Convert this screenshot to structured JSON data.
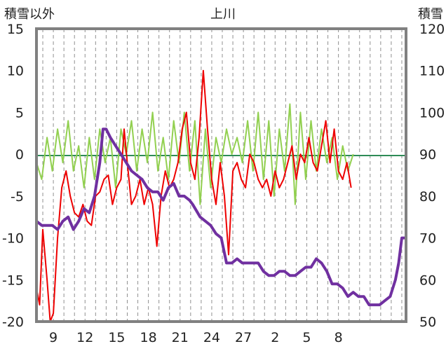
{
  "chart_data": {
    "type": "line",
    "title": "上川",
    "left_axis_label": "積雪以外",
    "right_axis_label": "積雪",
    "y_left": {
      "min": -20,
      "max": 15,
      "ticks": [
        15,
        10,
        5,
        0,
        -5,
        -10,
        -15,
        -20
      ]
    },
    "y_right": {
      "min": 50,
      "max": 120,
      "ticks": [
        120,
        110,
        100,
        90,
        80,
        70,
        60,
        50
      ]
    },
    "x": {
      "min": 0,
      "max": 35,
      "ticks": [
        {
          "pos": 1.6,
          "label": "9"
        },
        {
          "pos": 4.6,
          "label": "12"
        },
        {
          "pos": 7.6,
          "label": "15"
        },
        {
          "pos": 10.6,
          "label": "18"
        },
        {
          "pos": 13.6,
          "label": "21"
        },
        {
          "pos": 16.6,
          "label": "24"
        },
        {
          "pos": 19.6,
          "label": "27"
        },
        {
          "pos": 22.6,
          "label": "2"
        },
        {
          "pos": 25.6,
          "label": "5"
        },
        {
          "pos": 28.6,
          "label": "8"
        }
      ]
    },
    "colors": {
      "temperature": "#ee0000",
      "snow_depth": "#7030a0",
      "wind": "#92d050",
      "precip": "#ffc000",
      "sunshine": "#2e75b6",
      "frame": "#808080"
    },
    "series": [
      {
        "key": "temperature",
        "axis": "left",
        "points": [
          [
            0,
            -16
          ],
          [
            0.3,
            -18
          ],
          [
            0.6,
            -9
          ],
          [
            1,
            -15
          ],
          [
            1.3,
            -20
          ],
          [
            1.6,
            -19
          ],
          [
            2,
            -10
          ],
          [
            2.4,
            -4
          ],
          [
            2.8,
            -2
          ],
          [
            3.2,
            -5
          ],
          [
            3.6,
            -7
          ],
          [
            4,
            -7.5
          ],
          [
            4.4,
            -6
          ],
          [
            4.8,
            -8
          ],
          [
            5.2,
            -8.5
          ],
          [
            5.6,
            -5
          ],
          [
            6,
            -4.5
          ],
          [
            6.4,
            -3
          ],
          [
            6.8,
            -2.5
          ],
          [
            7.2,
            -6
          ],
          [
            7.6,
            -4
          ],
          [
            8,
            -3
          ],
          [
            8.3,
            3
          ],
          [
            8.6,
            -1
          ],
          [
            9,
            -6
          ],
          [
            9.4,
            -5
          ],
          [
            9.8,
            -3
          ],
          [
            10.2,
            -6
          ],
          [
            10.6,
            -4
          ],
          [
            11,
            -6
          ],
          [
            11.4,
            -11
          ],
          [
            11.8,
            -5
          ],
          [
            12.2,
            -2
          ],
          [
            12.6,
            -4
          ],
          [
            13,
            -3
          ],
          [
            13.4,
            -1
          ],
          [
            13.8,
            3
          ],
          [
            14.2,
            5
          ],
          [
            14.6,
            -1
          ],
          [
            15,
            -3
          ],
          [
            15.4,
            2
          ],
          [
            15.8,
            10
          ],
          [
            16.2,
            3
          ],
          [
            16.6,
            -3
          ],
          [
            17,
            -6
          ],
          [
            17.4,
            -1
          ],
          [
            17.8,
            -5
          ],
          [
            18.2,
            -12
          ],
          [
            18.6,
            -2
          ],
          [
            19,
            -1
          ],
          [
            19.4,
            -3
          ],
          [
            19.8,
            -4
          ],
          [
            20.2,
            0
          ],
          [
            20.6,
            -1
          ],
          [
            21,
            -3
          ],
          [
            21.4,
            -4
          ],
          [
            21.8,
            -3
          ],
          [
            22.2,
            -5
          ],
          [
            22.6,
            -2
          ],
          [
            23,
            -4
          ],
          [
            23.4,
            -3
          ],
          [
            23.8,
            -1
          ],
          [
            24.2,
            1
          ],
          [
            24.6,
            -3
          ],
          [
            25,
            0
          ],
          [
            25.4,
            -1
          ],
          [
            25.8,
            2
          ],
          [
            26.2,
            -1
          ],
          [
            26.6,
            -2
          ],
          [
            27,
            1
          ],
          [
            27.4,
            4
          ],
          [
            27.8,
            -1
          ],
          [
            28.2,
            3
          ],
          [
            28.6,
            -2
          ],
          [
            29,
            -3
          ],
          [
            29.4,
            -1
          ],
          [
            29.8,
            -4
          ]
        ]
      },
      {
        "key": "wind",
        "axis": "left",
        "points": [
          [
            0,
            -1
          ],
          [
            0.5,
            -3
          ],
          [
            1,
            2
          ],
          [
            1.5,
            -2
          ],
          [
            2,
            3
          ],
          [
            2.5,
            -1
          ],
          [
            3,
            4
          ],
          [
            3.5,
            -2
          ],
          [
            4,
            1
          ],
          [
            4.5,
            -4
          ],
          [
            5,
            2
          ],
          [
            5.5,
            -3
          ],
          [
            6,
            3
          ],
          [
            6.5,
            -1
          ],
          [
            7,
            2
          ],
          [
            7.5,
            -4
          ],
          [
            8,
            3
          ],
          [
            8.5,
            0
          ],
          [
            9,
            4
          ],
          [
            9.5,
            -2
          ],
          [
            10,
            3
          ],
          [
            10.5,
            -1
          ],
          [
            11,
            5
          ],
          [
            11.5,
            -2
          ],
          [
            12,
            2
          ],
          [
            12.5,
            -3
          ],
          [
            13,
            4
          ],
          [
            13.5,
            -1
          ],
          [
            14,
            5
          ],
          [
            14.5,
            -2
          ],
          [
            15,
            4
          ],
          [
            15.5,
            -6
          ],
          [
            16,
            3
          ],
          [
            16.5,
            -4
          ],
          [
            17,
            2
          ],
          [
            17.5,
            -1
          ],
          [
            18,
            3
          ],
          [
            18.5,
            0
          ],
          [
            19,
            2
          ],
          [
            19.5,
            -1
          ],
          [
            20,
            4
          ],
          [
            20.5,
            -2
          ],
          [
            21,
            5
          ],
          [
            21.5,
            -3
          ],
          [
            22,
            4
          ],
          [
            22.5,
            -5
          ],
          [
            23,
            3
          ],
          [
            23.5,
            -2
          ],
          [
            24,
            6
          ],
          [
            24.5,
            -6
          ],
          [
            25,
            5
          ],
          [
            25.5,
            -3
          ],
          [
            26,
            4
          ],
          [
            26.5,
            -2
          ],
          [
            27,
            3
          ],
          [
            27.5,
            -1
          ],
          [
            28,
            2
          ],
          [
            28.5,
            -3
          ],
          [
            29,
            1
          ],
          [
            29.5,
            -2
          ],
          [
            30,
            0
          ]
        ]
      },
      {
        "key": "snow_depth",
        "axis": "right",
        "points": [
          [
            0,
            74
          ],
          [
            0.5,
            73
          ],
          [
            1,
            73
          ],
          [
            1.5,
            73
          ],
          [
            2,
            72
          ],
          [
            2.5,
            74
          ],
          [
            3,
            75
          ],
          [
            3.5,
            72
          ],
          [
            4,
            74
          ],
          [
            4.5,
            77
          ],
          [
            5,
            76
          ],
          [
            5.5,
            80
          ],
          [
            6,
            88
          ],
          [
            6.3,
            96
          ],
          [
            6.6,
            96
          ],
          [
            7,
            94
          ],
          [
            7.5,
            92
          ],
          [
            8,
            90
          ],
          [
            8.5,
            88
          ],
          [
            9,
            86
          ],
          [
            9.5,
            85
          ],
          [
            10,
            84
          ],
          [
            10.5,
            82
          ],
          [
            11,
            81
          ],
          [
            11.5,
            81
          ],
          [
            12,
            79
          ],
          [
            12.5,
            82
          ],
          [
            13,
            83
          ],
          [
            13.5,
            80
          ],
          [
            14,
            80
          ],
          [
            14.5,
            79
          ],
          [
            14.8,
            78
          ],
          [
            15.5,
            75
          ],
          [
            16,
            74
          ],
          [
            16.5,
            73
          ],
          [
            17,
            71
          ],
          [
            17.5,
            70
          ],
          [
            18,
            64
          ],
          [
            18.5,
            64
          ],
          [
            19,
            65
          ],
          [
            19.5,
            64
          ],
          [
            20,
            64
          ],
          [
            20.5,
            64
          ],
          [
            21,
            64
          ],
          [
            21.5,
            62
          ],
          [
            22,
            61
          ],
          [
            22.5,
            61
          ],
          [
            23,
            62
          ],
          [
            23.5,
            62
          ],
          [
            24,
            61
          ],
          [
            24.5,
            61
          ],
          [
            25,
            62
          ],
          [
            25.5,
            63
          ],
          [
            26,
            63
          ],
          [
            26.5,
            65
          ],
          [
            27,
            64
          ],
          [
            27.5,
            62
          ],
          [
            28,
            59
          ],
          [
            28.5,
            59
          ],
          [
            29,
            58
          ],
          [
            29.5,
            56
          ],
          [
            30,
            57
          ],
          [
            30.5,
            56
          ],
          [
            31,
            56
          ],
          [
            31.5,
            54
          ],
          [
            32,
            54
          ],
          [
            32.5,
            54
          ],
          [
            33,
            55
          ],
          [
            33.5,
            56
          ],
          [
            34,
            60
          ],
          [
            34.3,
            64
          ],
          [
            34.6,
            70
          ],
          [
            35,
            70
          ]
        ]
      }
    ]
  }
}
